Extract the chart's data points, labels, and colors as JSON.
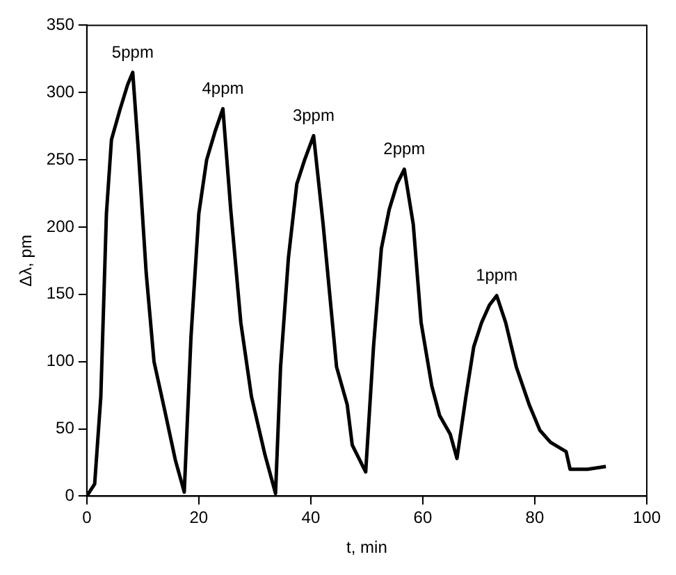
{
  "chart_data": {
    "type": "line",
    "xlabel": "t, min",
    "ylabel": "Δλ, pm",
    "xlim": [
      0,
      100
    ],
    "xticks": [
      0,
      20,
      40,
      60,
      80,
      100
    ],
    "ylim": [
      0,
      350
    ],
    "yticks": [
      0,
      50,
      100,
      150,
      200,
      250,
      300,
      350
    ],
    "grid": false,
    "legend": false,
    "marker": "none",
    "line_style": "solid",
    "series": [
      {
        "color": "#000000",
        "x": [
          0,
          1.4,
          2.5,
          3.5,
          4.4,
          5.9,
          7.3,
          8.2,
          9.2,
          10.6,
          12,
          13.9,
          15.8,
          17.4,
          18.6,
          20,
          21.4,
          22.9,
          24.3,
          25.7,
          27.5,
          29.4,
          31.8,
          33.7,
          34.6,
          36,
          37.5,
          38.9,
          40.5,
          42.2,
          44.6,
          46.5,
          47.4,
          49.8,
          51.2,
          52.6,
          54,
          55.4,
          56.7,
          58.3,
          59.7,
          61.6,
          63,
          64.9,
          66.1,
          67.7,
          69.1,
          70.5,
          71.9,
          73.2,
          74.8,
          76.7,
          79,
          80.9,
          82.8,
          85.6,
          86.3,
          89.4,
          92.7
        ],
        "values": [
          0,
          9,
          74,
          210,
          265,
          287,
          306,
          315,
          257,
          166,
          100,
          64,
          27,
          3,
          118,
          210,
          250,
          271,
          288,
          213,
          129,
          74,
          31,
          2,
          96,
          177,
          232,
          250,
          268,
          202,
          96,
          68,
          38,
          18,
          111,
          184,
          213,
          232,
          243,
          202,
          129,
          82,
          60,
          46,
          28,
          74,
          111,
          129,
          142,
          149,
          129,
          96,
          68,
          49,
          40,
          33,
          20,
          20,
          22
        ]
      }
    ],
    "annotations": [
      {
        "text": "5ppm",
        "x": 8.2,
        "y": 315
      },
      {
        "text": "4ppm",
        "x": 24.3,
        "y": 288
      },
      {
        "text": "3ppm",
        "x": 40.5,
        "y": 268
      },
      {
        "text": "2ppm",
        "x": 56.7,
        "y": 243
      },
      {
        "text": "1ppm",
        "x": 73.2,
        "y": 149
      }
    ]
  }
}
